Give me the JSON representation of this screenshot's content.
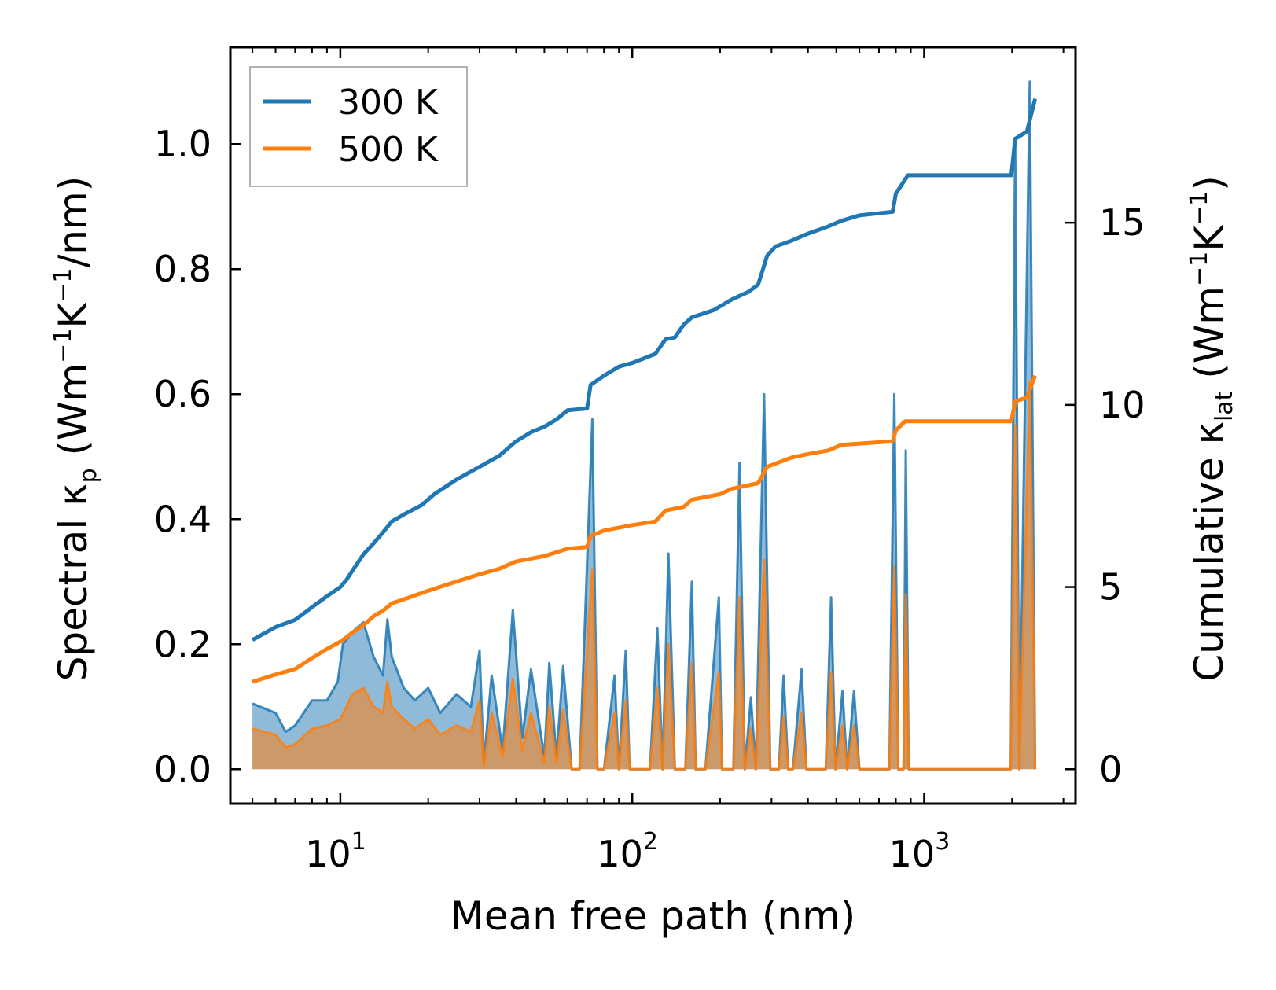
{
  "chart_data": {
    "type": "line",
    "xscale": "log",
    "xlim": [
      4.2,
      3300
    ],
    "ylim_left": [
      -0.055,
      1.155
    ],
    "ylim_right": [
      -0.9436,
      19.8156
    ],
    "xlabel": "Mean free path (nm)",
    "ylabel_left": {
      "pre": "Spectral κ",
      "sub": "p",
      "mid1": " (Wm",
      "sup1": "−1",
      "mid2": "K",
      "sup2": "−1",
      "post": "/nm)"
    },
    "ylabel_right": {
      "pre": "Cumulative κ",
      "sub": "lat",
      "mid1": " (Wm",
      "sup1": "−1",
      "mid2": "K",
      "sup2": "−1",
      "post": ")"
    },
    "x_ticks": [
      {
        "base": "10",
        "exp": "1",
        "value": 10
      },
      {
        "base": "10",
        "exp": "2",
        "value": 100
      },
      {
        "base": "10",
        "exp": "3",
        "value": 1000
      }
    ],
    "y_left_ticks": [
      {
        "label": "0.0",
        "value": 0.0
      },
      {
        "label": "0.2",
        "value": 0.2
      },
      {
        "label": "0.4",
        "value": 0.4
      },
      {
        "label": "0.6",
        "value": 0.6
      },
      {
        "label": "0.8",
        "value": 0.8
      },
      {
        "label": "1.0",
        "value": 1.0
      }
    ],
    "y_right_ticks": [
      {
        "label": "0",
        "value": 0
      },
      {
        "label": "5",
        "value": 5
      },
      {
        "label": "10",
        "value": 10
      },
      {
        "label": "15",
        "value": 15
      }
    ],
    "legend": {
      "position": "upper-left",
      "entries": [
        {
          "label": "300 K",
          "color": "#1f77b4"
        },
        {
          "label": "500 K",
          "color": "#ff7f0e"
        }
      ]
    },
    "series": [
      {
        "name": "300 K",
        "color": "#1f77b4",
        "cumulative": [
          [
            5.0,
            3.55
          ],
          [
            6.0,
            3.9
          ],
          [
            7.0,
            4.1
          ],
          [
            8.0,
            4.45
          ],
          [
            9.0,
            4.75
          ],
          [
            10.0,
            5.0
          ],
          [
            10.5,
            5.2
          ],
          [
            11.0,
            5.45
          ],
          [
            12.0,
            5.9
          ],
          [
            13.0,
            6.2
          ],
          [
            14.0,
            6.5
          ],
          [
            15.0,
            6.8
          ],
          [
            17.0,
            7.05
          ],
          [
            19.0,
            7.25
          ],
          [
            21.0,
            7.55
          ],
          [
            25.0,
            7.95
          ],
          [
            30.0,
            8.3
          ],
          [
            35.0,
            8.6
          ],
          [
            40.0,
            9.0
          ],
          [
            45.0,
            9.25
          ],
          [
            50.0,
            9.4
          ],
          [
            55.0,
            9.6
          ],
          [
            60.0,
            9.85
          ],
          [
            70.0,
            9.9
          ],
          [
            72.0,
            10.55
          ],
          [
            80.0,
            10.8
          ],
          [
            90.0,
            11.05
          ],
          [
            100.0,
            11.15
          ],
          [
            120.0,
            11.4
          ],
          [
            130.0,
            11.8
          ],
          [
            140.0,
            11.85
          ],
          [
            150.0,
            12.2
          ],
          [
            160.0,
            12.4
          ],
          [
            190.0,
            12.6
          ],
          [
            220.0,
            12.9
          ],
          [
            250.0,
            13.1
          ],
          [
            270.0,
            13.3
          ],
          [
            290.0,
            14.1
          ],
          [
            310.0,
            14.35
          ],
          [
            350.0,
            14.5
          ],
          [
            400.0,
            14.7
          ],
          [
            470.0,
            14.9
          ],
          [
            520.0,
            15.05
          ],
          [
            600.0,
            15.2
          ],
          [
            780.0,
            15.3
          ],
          [
            800.0,
            15.8
          ],
          [
            880.0,
            16.3
          ],
          [
            1990.0,
            16.3
          ],
          [
            2050.0,
            17.3
          ],
          [
            2250.0,
            17.5
          ],
          [
            2400.0,
            18.4
          ]
        ],
        "spectral": [
          [
            5.0,
            0.105
          ],
          [
            6.0,
            0.09
          ],
          [
            6.5,
            0.06
          ],
          [
            7.0,
            0.07
          ],
          [
            8.0,
            0.11
          ],
          [
            9.0,
            0.11
          ],
          [
            9.8,
            0.14
          ],
          [
            10.2,
            0.2
          ],
          [
            11.0,
            0.22
          ],
          [
            12.0,
            0.235
          ],
          [
            13.0,
            0.18
          ],
          [
            14.0,
            0.15
          ],
          [
            14.5,
            0.24
          ],
          [
            15.0,
            0.18
          ],
          [
            16.5,
            0.13
          ],
          [
            18.0,
            0.11
          ],
          [
            20.0,
            0.13
          ],
          [
            22.0,
            0.09
          ],
          [
            25.0,
            0.12
          ],
          [
            28.0,
            0.1
          ],
          [
            30.0,
            0.19
          ],
          [
            31.0,
            0.01
          ],
          [
            33.0,
            0.15
          ],
          [
            36.0,
            0.03
          ],
          [
            39.0,
            0.255
          ],
          [
            42.0,
            0.05
          ],
          [
            45.0,
            0.16
          ],
          [
            50.0,
            0.02
          ],
          [
            52.0,
            0.17
          ],
          [
            55.0,
            0.02
          ],
          [
            58.0,
            0.165
          ],
          [
            62.0,
            0.0
          ],
          [
            66.0,
            0.0
          ],
          [
            73.0,
            0.56
          ],
          [
            76.0,
            0.0
          ],
          [
            80.0,
            0.0
          ],
          [
            87.0,
            0.15
          ],
          [
            90.0,
            0.0
          ],
          [
            95.0,
            0.19
          ],
          [
            98.0,
            0.0
          ],
          [
            115.0,
            0.0
          ],
          [
            122.0,
            0.225
          ],
          [
            127.0,
            0.0
          ],
          [
            133.0,
            0.345
          ],
          [
            140.0,
            0.0
          ],
          [
            152.0,
            0.0
          ],
          [
            160.0,
            0.3
          ],
          [
            165.0,
            0.0
          ],
          [
            178.0,
            0.0
          ],
          [
            198.0,
            0.275
          ],
          [
            203.0,
            0.0
          ],
          [
            222.0,
            0.0
          ],
          [
            233.0,
            0.49
          ],
          [
            243.0,
            0.0
          ],
          [
            255.0,
            0.115
          ],
          [
            265.0,
            0.0
          ],
          [
            283.0,
            0.6
          ],
          [
            297.0,
            0.0
          ],
          [
            318.0,
            0.0
          ],
          [
            330.0,
            0.15
          ],
          [
            342.0,
            0.0
          ],
          [
            355.0,
            0.0
          ],
          [
            380.0,
            0.16
          ],
          [
            395.0,
            0.0
          ],
          [
            460.0,
            0.0
          ],
          [
            480.0,
            0.275
          ],
          [
            497.0,
            0.0
          ],
          [
            525.0,
            0.125
          ],
          [
            545.0,
            0.0
          ],
          [
            575.0,
            0.125
          ],
          [
            600.0,
            0.0
          ],
          [
            760.0,
            0.0
          ],
          [
            790.0,
            0.6
          ],
          [
            815.0,
            0.0
          ],
          [
            850.0,
            0.0
          ],
          [
            865.0,
            0.51
          ],
          [
            885.0,
            0.0
          ],
          [
            1980.0,
            0.0
          ],
          [
            2050.0,
            1.01
          ],
          [
            2120.0,
            0.0
          ],
          [
            2300.0,
            1.1
          ],
          [
            2400.0,
            0.0
          ]
        ]
      },
      {
        "name": "500 K",
        "color": "#ff7f0e",
        "cumulative": [
          [
            5.0,
            2.4
          ],
          [
            6.0,
            2.6
          ],
          [
            7.0,
            2.75
          ],
          [
            8.0,
            3.05
          ],
          [
            9.0,
            3.3
          ],
          [
            10.0,
            3.5
          ],
          [
            11.0,
            3.75
          ],
          [
            12.0,
            3.95
          ],
          [
            13.0,
            4.2
          ],
          [
            14.0,
            4.35
          ],
          [
            15.0,
            4.55
          ],
          [
            17.0,
            4.7
          ],
          [
            20.0,
            4.9
          ],
          [
            25.0,
            5.15
          ],
          [
            30.0,
            5.35
          ],
          [
            35.0,
            5.5
          ],
          [
            40.0,
            5.7
          ],
          [
            50.0,
            5.85
          ],
          [
            60.0,
            6.05
          ],
          [
            70.0,
            6.1
          ],
          [
            72.0,
            6.4
          ],
          [
            80.0,
            6.55
          ],
          [
            100.0,
            6.7
          ],
          [
            120.0,
            6.8
          ],
          [
            130.0,
            7.1
          ],
          [
            150.0,
            7.2
          ],
          [
            160.0,
            7.4
          ],
          [
            200.0,
            7.55
          ],
          [
            220.0,
            7.7
          ],
          [
            270.0,
            7.85
          ],
          [
            290.0,
            8.3
          ],
          [
            350.0,
            8.55
          ],
          [
            400.0,
            8.65
          ],
          [
            470.0,
            8.75
          ],
          [
            520.0,
            8.9
          ],
          [
            780.0,
            9.0
          ],
          [
            800.0,
            9.3
          ],
          [
            860.0,
            9.55
          ],
          [
            1990.0,
            9.55
          ],
          [
            2050.0,
            10.1
          ],
          [
            2250.0,
            10.2
          ],
          [
            2400.0,
            10.8
          ]
        ],
        "spectral": [
          [
            5.0,
            0.065
          ],
          [
            6.0,
            0.055
          ],
          [
            6.5,
            0.035
          ],
          [
            7.0,
            0.04
          ],
          [
            8.0,
            0.065
          ],
          [
            9.0,
            0.07
          ],
          [
            10.0,
            0.08
          ],
          [
            11.0,
            0.12
          ],
          [
            12.0,
            0.13
          ],
          [
            13.0,
            0.1
          ],
          [
            14.0,
            0.09
          ],
          [
            14.5,
            0.14
          ],
          [
            15.0,
            0.1
          ],
          [
            16.5,
            0.08
          ],
          [
            18.0,
            0.065
          ],
          [
            20.0,
            0.08
          ],
          [
            22.0,
            0.055
          ],
          [
            25.0,
            0.07
          ],
          [
            28.0,
            0.06
          ],
          [
            30.0,
            0.11
          ],
          [
            31.0,
            0.005
          ],
          [
            33.0,
            0.09
          ],
          [
            36.0,
            0.02
          ],
          [
            39.0,
            0.145
          ],
          [
            42.0,
            0.03
          ],
          [
            45.0,
            0.09
          ],
          [
            50.0,
            0.01
          ],
          [
            52.0,
            0.1
          ],
          [
            55.0,
            0.01
          ],
          [
            58.0,
            0.095
          ],
          [
            62.0,
            0.0
          ],
          [
            66.0,
            0.0
          ],
          [
            73.0,
            0.32
          ],
          [
            76.0,
            0.0
          ],
          [
            80.0,
            0.0
          ],
          [
            87.0,
            0.09
          ],
          [
            90.0,
            0.0
          ],
          [
            95.0,
            0.11
          ],
          [
            98.0,
            0.0
          ],
          [
            115.0,
            0.0
          ],
          [
            122.0,
            0.13
          ],
          [
            127.0,
            0.0
          ],
          [
            133.0,
            0.2
          ],
          [
            140.0,
            0.0
          ],
          [
            152.0,
            0.0
          ],
          [
            160.0,
            0.17
          ],
          [
            165.0,
            0.0
          ],
          [
            178.0,
            0.0
          ],
          [
            198.0,
            0.155
          ],
          [
            203.0,
            0.0
          ],
          [
            222.0,
            0.0
          ],
          [
            233.0,
            0.275
          ],
          [
            243.0,
            0.0
          ],
          [
            255.0,
            0.065
          ],
          [
            265.0,
            0.0
          ],
          [
            283.0,
            0.335
          ],
          [
            297.0,
            0.0
          ],
          [
            318.0,
            0.0
          ],
          [
            330.0,
            0.085
          ],
          [
            342.0,
            0.0
          ],
          [
            355.0,
            0.0
          ],
          [
            380.0,
            0.09
          ],
          [
            395.0,
            0.0
          ],
          [
            460.0,
            0.0
          ],
          [
            480.0,
            0.155
          ],
          [
            497.0,
            0.0
          ],
          [
            525.0,
            0.07
          ],
          [
            545.0,
            0.0
          ],
          [
            575.0,
            0.07
          ],
          [
            600.0,
            0.0
          ],
          [
            760.0,
            0.0
          ],
          [
            790.0,
            0.325
          ],
          [
            815.0,
            0.0
          ],
          [
            850.0,
            0.0
          ],
          [
            865.0,
            0.28
          ],
          [
            885.0,
            0.0
          ],
          [
            1980.0,
            0.0
          ],
          [
            2050.0,
            0.55
          ],
          [
            2120.0,
            0.0
          ],
          [
            2300.0,
            0.62
          ],
          [
            2400.0,
            0.0
          ]
        ]
      }
    ]
  }
}
